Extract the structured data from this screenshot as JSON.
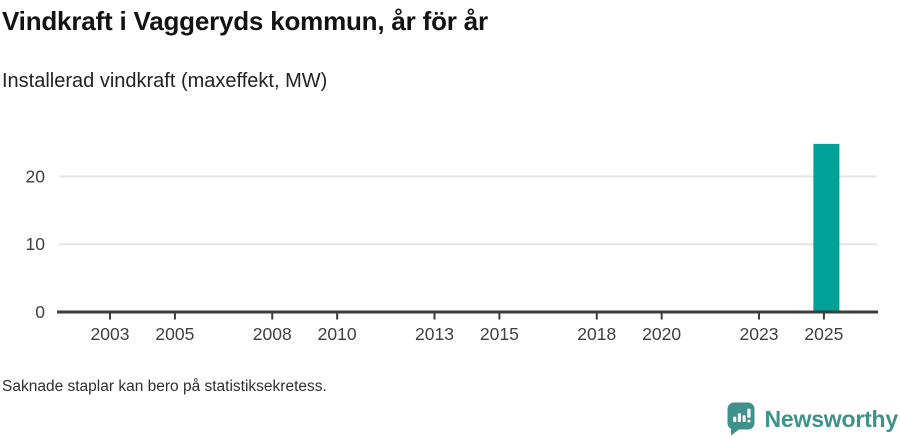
{
  "chart_data": {
    "type": "bar",
    "title": "Vindkraft i Vaggeryds kommun, år för år",
    "subtitle": "Installerad vindkraft (maxeffekt, MW)",
    "ylabel": "Installerad vindkraft (maxeffekt, MW)",
    "x_tick_labels": [
      "2003",
      "2005",
      "2008",
      "2010",
      "2013",
      "2015",
      "2018",
      "2020",
      "2023",
      "2025"
    ],
    "y_ticks": [
      0,
      10,
      20
    ],
    "ylim": [
      0,
      25.5
    ],
    "grid": "horizontal",
    "legend": "none",
    "bars": [
      {
        "year": 2025,
        "value": 24.8
      }
    ],
    "missing_years_note": "all years before 2025 show no bar",
    "bar_color": "#00a196"
  },
  "footer": {
    "note": "Saknade staplar kan bero på statistiksekretess."
  },
  "branding": {
    "name": "Newsworthy",
    "icon": "newsworthy-speech-bubble-chart-icon",
    "logo_color": "#3f928b"
  },
  "colors": {
    "bar": "#00a196",
    "axis": "#3d3d3d",
    "gridline": "#e3e3e3",
    "tick_text": "#3f3f3f"
  }
}
